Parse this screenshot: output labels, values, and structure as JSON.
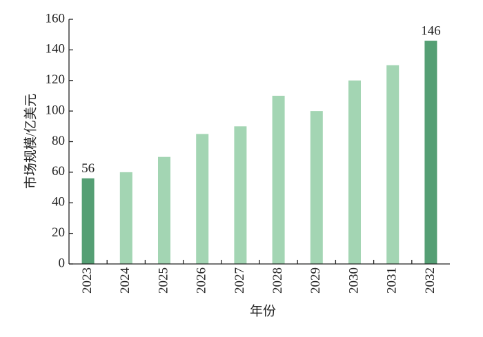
{
  "chart_data": {
    "type": "bar",
    "x_label": "年份",
    "y_label": "市场规模/亿美元",
    "categories": [
      "2023",
      "2024",
      "2025",
      "2026",
      "2027",
      "2028",
      "2029",
      "2030",
      "2031",
      "2032"
    ],
    "values": [
      56,
      60,
      70,
      85,
      90,
      110,
      100,
      120,
      130,
      146
    ],
    "colors": [
      "#559f74",
      "#a3d5b3",
      "#a3d5b3",
      "#a3d5b3",
      "#a3d5b3",
      "#a3d5b3",
      "#a3d5b3",
      "#a3d5b3",
      "#a3d5b3",
      "#559f74"
    ],
    "data_labels": [
      true,
      false,
      false,
      false,
      false,
      false,
      false,
      false,
      false,
      true
    ],
    "ylim": [
      0,
      160
    ],
    "yticks": [
      0,
      20,
      40,
      60,
      80,
      100,
      120,
      140,
      160
    ],
    "grid": false
  }
}
